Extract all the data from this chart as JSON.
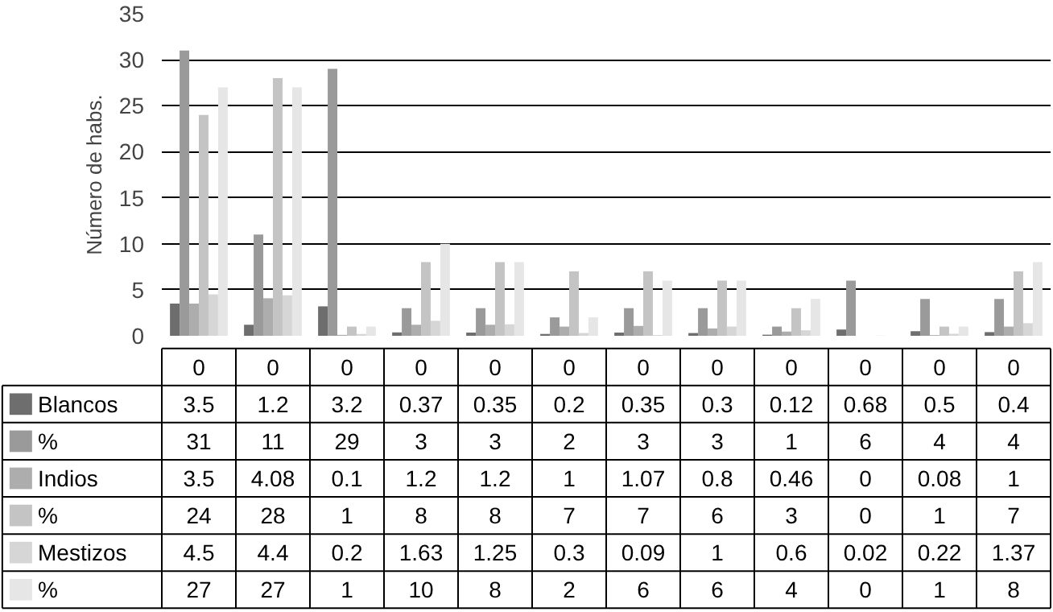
{
  "chart_data": {
    "type": "bar",
    "ylabel": "Número de habs.",
    "categories": [
      "0",
      "0",
      "0",
      "0",
      "0",
      "0",
      "0",
      "0",
      "0",
      "0",
      "0",
      "0"
    ],
    "series": [
      {
        "name": "Blancos",
        "color": "#6e6e6e",
        "values": [
          3.5,
          1.2,
          3.2,
          0.37,
          0.35,
          0.2,
          0.35,
          0.3,
          0.12,
          0.68,
          0.5,
          0.4
        ]
      },
      {
        "name": "%",
        "color": "#9a9a9a",
        "values": [
          31,
          11,
          29,
          3,
          3,
          2,
          3,
          3,
          1,
          6,
          4,
          4
        ]
      },
      {
        "name": "Indios",
        "color": "#adadad",
        "values": [
          3.5,
          4.08,
          0.1,
          1.2,
          1.2,
          1,
          1.07,
          0.8,
          0.46,
          0,
          0.08,
          1
        ]
      },
      {
        "name": "%",
        "color": "#c4c4c4",
        "values": [
          24,
          28,
          1,
          8,
          8,
          7,
          7,
          6,
          3,
          0,
          1,
          7
        ]
      },
      {
        "name": "Mestizos",
        "color": "#d6d6d6",
        "values": [
          4.5,
          4.4,
          0.2,
          1.63,
          1.25,
          0.3,
          0.09,
          1,
          0.6,
          0.02,
          0.22,
          1.37
        ]
      },
      {
        "name": "%",
        "color": "#e6e6e6",
        "values": [
          27,
          27,
          1,
          10,
          8,
          2,
          6,
          6,
          4,
          0,
          1,
          8
        ]
      }
    ],
    "ylim": [
      0,
      35
    ],
    "yticks": [
      0,
      5,
      10,
      15,
      20,
      25,
      30,
      35
    ],
    "grid": "y",
    "legend": "bottom",
    "data_labels": true
  }
}
